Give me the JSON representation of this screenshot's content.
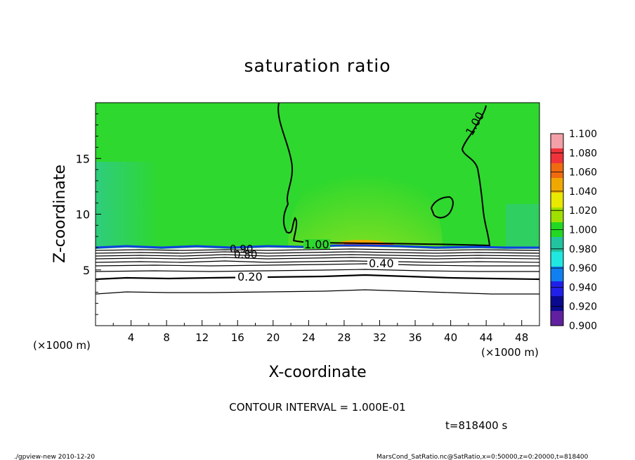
{
  "chart_data": {
    "type": "heatmap",
    "title": "saturation ratio",
    "xlabel": "X-coordinate",
    "ylabel": "Z-coordinate",
    "x_unit_left": "(×1000 m)",
    "x_unit_right": "(×1000 m)",
    "xlim": [
      0,
      50
    ],
    "ylim": [
      0,
      20
    ],
    "x_ticks": [
      "4",
      "8",
      "12",
      "16",
      "20",
      "24",
      "28",
      "32",
      "36",
      "40",
      "44",
      "48"
    ],
    "y_ticks": [
      "5",
      "10",
      "15"
    ],
    "colorbar": {
      "levels": [
        "1.100",
        "1.080",
        "1.060",
        "1.040",
        "1.020",
        "1.000",
        "0.980",
        "0.960",
        "0.940",
        "0.920",
        "0.900"
      ],
      "colors": [
        "#f4a0a8",
        "#f0333a",
        "#f06a10",
        "#f0a800",
        "#e8e800",
        "#a0e000",
        "#22d822",
        "#22c4a0",
        "#20e8e0",
        "#1080f0",
        "#2020e8",
        "#0a0a90",
        "#6020a0"
      ]
    },
    "contour_labels": [
      "1.00",
      "1.00",
      "0.90",
      "0.80",
      "0.40",
      "0.20"
    ],
    "contour_interval_text": "CONTOUR INTERVAL = 1.000E-01",
    "time_text": "t=818400 s",
    "colors": {
      "field": "#2ed82e",
      "below": "#ffffff",
      "line": "#000000"
    }
  },
  "footer": {
    "left": "./gpview-new   2010-12-20",
    "right": "MarsCond_SatRatio.nc@SatRatio,x=0:50000,z=0:20000,t=818400"
  }
}
